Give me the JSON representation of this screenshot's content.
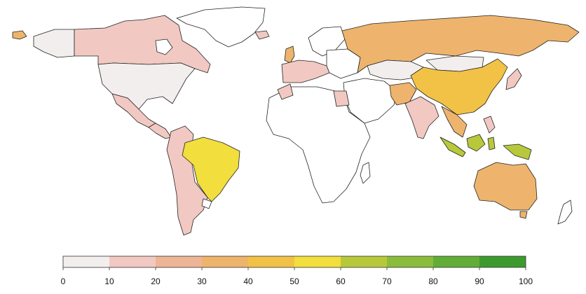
{
  "legend": {
    "ticks": [
      "0",
      "10",
      "20",
      "30",
      "40",
      "50",
      "60",
      "70",
      "80",
      "90",
      "100"
    ],
    "bins": [
      {
        "range": "0-10",
        "color": "#f3eeee"
      },
      {
        "range": "10-20",
        "color": "#f1c9c2"
      },
      {
        "range": "20-30",
        "color": "#edb596"
      },
      {
        "range": "30-40",
        "color": "#eeb46d"
      },
      {
        "range": "40-50",
        "color": "#f1c246"
      },
      {
        "range": "50-60",
        "color": "#f2de3d"
      },
      {
        "range": "60-70",
        "color": "#b7c93b"
      },
      {
        "range": "70-80",
        "color": "#8abd3c"
      },
      {
        "range": "80-90",
        "color": "#62ad38"
      },
      {
        "range": "90-100",
        "color": "#3d9a2f"
      }
    ]
  },
  "countries": [
    {
      "name": "alaska",
      "bin": "0-10"
    },
    {
      "name": "canada",
      "bin": "10-20"
    },
    {
      "name": "greenland",
      "bin": "no-data"
    },
    {
      "name": "usa",
      "bin": "0-10"
    },
    {
      "name": "mexico",
      "bin": "10-20"
    },
    {
      "name": "central-america",
      "bin": "10-20"
    },
    {
      "name": "brazil",
      "bin": "50-60"
    },
    {
      "name": "south-america-west",
      "bin": "10-20"
    },
    {
      "name": "uk",
      "bin": "30-40"
    },
    {
      "name": "russia",
      "bin": "30-40"
    },
    {
      "name": "china",
      "bin": "40-50"
    },
    {
      "name": "india",
      "bin": "10-20"
    },
    {
      "name": "indonesia",
      "bin": "60-70"
    },
    {
      "name": "australia",
      "bin": "30-40"
    },
    {
      "name": "japan",
      "bin": "10-20"
    }
  ]
}
